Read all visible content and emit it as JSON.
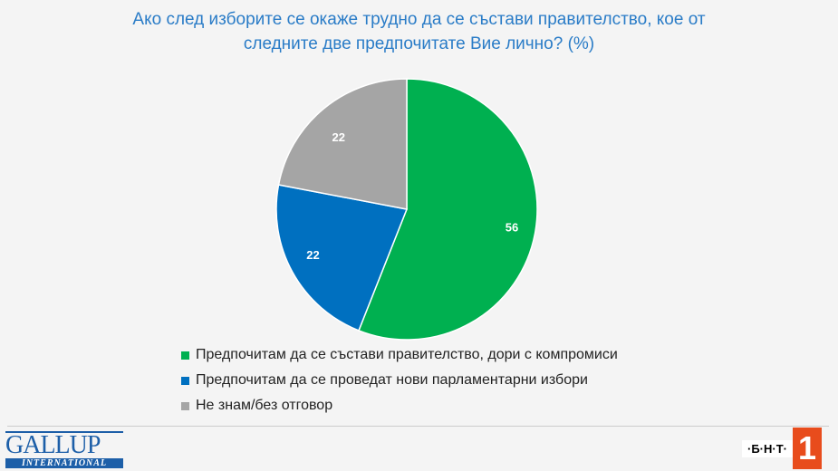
{
  "chart_data": {
    "type": "pie",
    "title": "Ако след изборите се окаже трудно да се състави правителство, кое от следните две предпочитате Вие лично? (%)",
    "title_lines": [
      "Ако след изборите се окаже трудно да се състави правителство, кое от",
      "следните две предпочитате Вие лично? (%)"
    ],
    "categories": [
      "Предпочитам да се състави правителство, дори с компромиси",
      "Предпочитам да се проведат нови парламентарни избори",
      "Не знам/без отговор"
    ],
    "values": [
      56,
      22,
      22
    ],
    "colors": [
      "#00b050",
      "#0070c0",
      "#a5a5a5"
    ],
    "legend_position": "bottom"
  },
  "logos": {
    "gallup": "GALLUP",
    "gallup_sub": "INTERNATIONAL",
    "bnt": "·Б·Н·Т·",
    "bnt_num": "1"
  }
}
